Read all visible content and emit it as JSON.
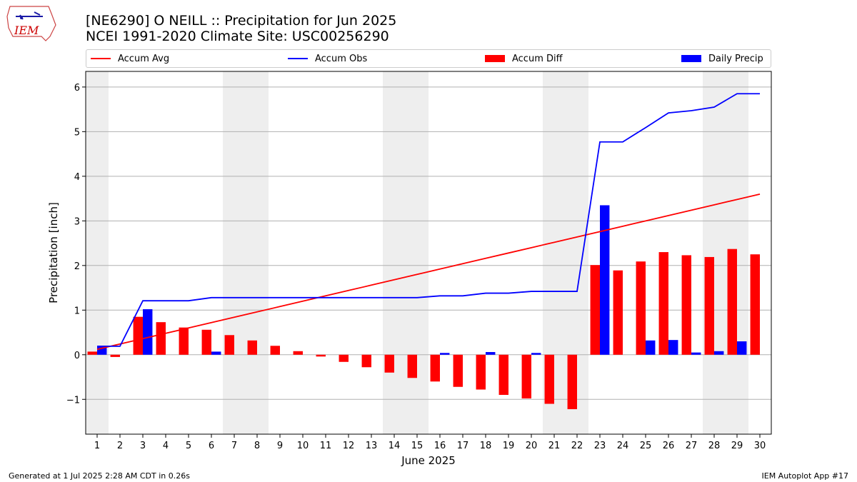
{
  "header": {
    "title_line1": "[NE6290] O NEILL :: Precipitation for Jun 2025",
    "title_line2": "NCEI 1991-2020 Climate Site: USC00256290",
    "logo_text": "IEM"
  },
  "footer": {
    "generated": "Generated at 1 Jul 2025 2:28 AM CDT in 0.26s",
    "app": "IEM Autoplot App #17"
  },
  "colors": {
    "accum_avg": "#ff0000",
    "accum_obs": "#0000ff",
    "accum_diff": "#ff0000",
    "daily_precip": "#0000ff",
    "weekend_shade": "#eeeeee",
    "grid": "#b0b0b0"
  },
  "chart_data": {
    "type": "bar",
    "xlabel": "June 2025",
    "ylabel": "Precipitation [inch]",
    "ylim": [
      -1.78,
      6.35
    ],
    "yticks": [
      -1,
      0,
      1,
      2,
      3,
      4,
      5,
      6
    ],
    "ytick_labels": [
      "−1",
      "0",
      "1",
      "2",
      "3",
      "4",
      "5",
      "6"
    ],
    "categories": [
      "1",
      "2",
      "3",
      "4",
      "5",
      "6",
      "7",
      "8",
      "9",
      "10",
      "11",
      "12",
      "13",
      "14",
      "15",
      "16",
      "17",
      "18",
      "19",
      "20",
      "21",
      "22",
      "23",
      "24",
      "25",
      "26",
      "27",
      "28",
      "29",
      "30"
    ],
    "weekend_days": [
      1,
      7,
      8,
      14,
      15,
      21,
      22,
      28,
      29
    ],
    "grid": "horizontal",
    "legend_position": "top",
    "series": [
      {
        "name": "Accum Avg",
        "kind": "line",
        "values": [
          0.12,
          0.24,
          0.36,
          0.48,
          0.6,
          0.72,
          0.84,
          0.96,
          1.08,
          1.2,
          1.32,
          1.44,
          1.56,
          1.68,
          1.8,
          1.92,
          2.04,
          2.16,
          2.28,
          2.4,
          2.52,
          2.64,
          2.76,
          2.88,
          3.0,
          3.12,
          3.24,
          3.36,
          3.48,
          3.6
        ]
      },
      {
        "name": "Accum Obs",
        "kind": "line",
        "values": [
          0.19,
          0.19,
          1.21,
          1.21,
          1.21,
          1.28,
          1.28,
          1.28,
          1.28,
          1.28,
          1.28,
          1.28,
          1.28,
          1.28,
          1.28,
          1.32,
          1.32,
          1.38,
          1.38,
          1.42,
          1.42,
          1.42,
          4.77,
          4.77,
          5.09,
          5.42,
          5.47,
          5.55,
          5.85,
          5.85
        ]
      },
      {
        "name": "Accum Diff",
        "kind": "bar",
        "values": [
          0.07,
          -0.05,
          0.85,
          0.73,
          0.61,
          0.56,
          0.44,
          0.32,
          0.2,
          0.08,
          -0.04,
          -0.16,
          -0.28,
          -0.4,
          -0.52,
          -0.6,
          -0.72,
          -0.78,
          -0.9,
          -0.98,
          -1.1,
          -1.22,
          2.01,
          1.89,
          2.09,
          2.3,
          2.23,
          2.19,
          2.37,
          2.25
        ]
      },
      {
        "name": "Daily Precip",
        "kind": "bar",
        "values": [
          0.19,
          0,
          1.02,
          0,
          0,
          0.07,
          0,
          0,
          0,
          0,
          0,
          0,
          0,
          0,
          0,
          0.04,
          0,
          0.06,
          0,
          0.04,
          0,
          0,
          3.35,
          0,
          0.32,
          0.33,
          0.05,
          0.08,
          0.3,
          0
        ]
      }
    ]
  }
}
